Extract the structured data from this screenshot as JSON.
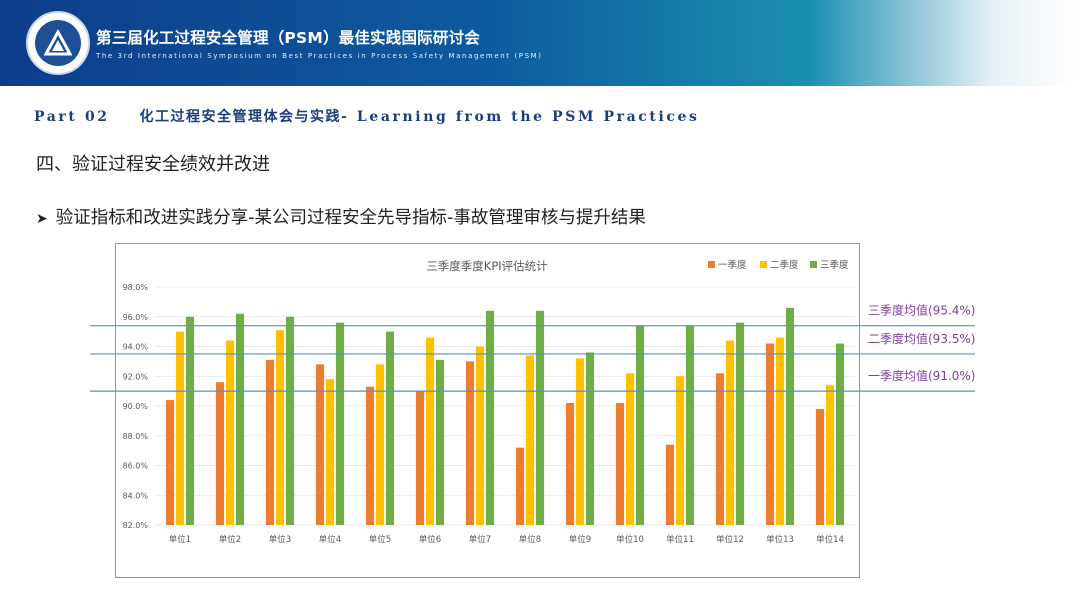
{
  "header": {
    "title": "第三届化工过程安全管理（PSM）最佳实践国际研讨会",
    "subtitle": "The 3rd International Symposium on Best Practices in Process Safety Management (PSM)"
  },
  "part": {
    "label": "Part 02",
    "title_cn": "化工过程安全管理体会与实践",
    "title_en": "- Learning from the PSM Practices"
  },
  "section_heading": "四、验证过程安全绩效并改进",
  "bullet": "验证指标和改进实践分享-某公司过程安全先导指标-事故管理审核与提升结果",
  "colors": {
    "banner": "#0d3d8a",
    "q1": "#ed7d31",
    "q2": "#ffc000",
    "q3": "#70ad47",
    "mean_line": "#4f93c6",
    "mean_label": "#7b3f9e"
  },
  "chart_data": {
    "type": "bar",
    "title": "三季度季度KPI评估统计",
    "categories": [
      "单位1",
      "单位2",
      "单位3",
      "单位4",
      "单位5",
      "单位6",
      "单位7",
      "单位8",
      "单位9",
      "单位10",
      "单位11",
      "单位12",
      "单位13",
      "单位14"
    ],
    "series": [
      {
        "name": "一季度",
        "color": "#ed7d31",
        "values": [
          90.4,
          91.6,
          93.1,
          92.8,
          91.3,
          91.0,
          93.0,
          87.2,
          90.2,
          90.2,
          87.4,
          92.2,
          94.2,
          89.8
        ]
      },
      {
        "name": "二季度",
        "color": "#ffc000",
        "values": [
          95.0,
          94.4,
          95.1,
          91.8,
          92.8,
          94.6,
          94.0,
          93.4,
          93.2,
          92.2,
          92.0,
          94.4,
          94.6,
          91.4
        ]
      },
      {
        "name": "三季度",
        "color": "#70ad47",
        "values": [
          96.0,
          96.2,
          96.0,
          95.6,
          95.0,
          93.1,
          96.4,
          96.4,
          93.6,
          95.4,
          95.4,
          95.6,
          96.6,
          94.2
        ]
      }
    ],
    "ylim": [
      82.0,
      98.0
    ],
    "yticks": [
      "98.0%",
      "96.0%",
      "94.0%",
      "92.0%",
      "90.0%",
      "88.0%",
      "86.0%",
      "84.0%",
      "82.0%"
    ],
    "grid": true,
    "legend": "top-right",
    "mean_lines": [
      {
        "value": 95.4,
        "label": "三季度均值(95.4%)"
      },
      {
        "value": 93.5,
        "label": "二季度均值(93.5%)"
      },
      {
        "value": 91.0,
        "label": "一季度均值(91.0%)"
      }
    ]
  }
}
